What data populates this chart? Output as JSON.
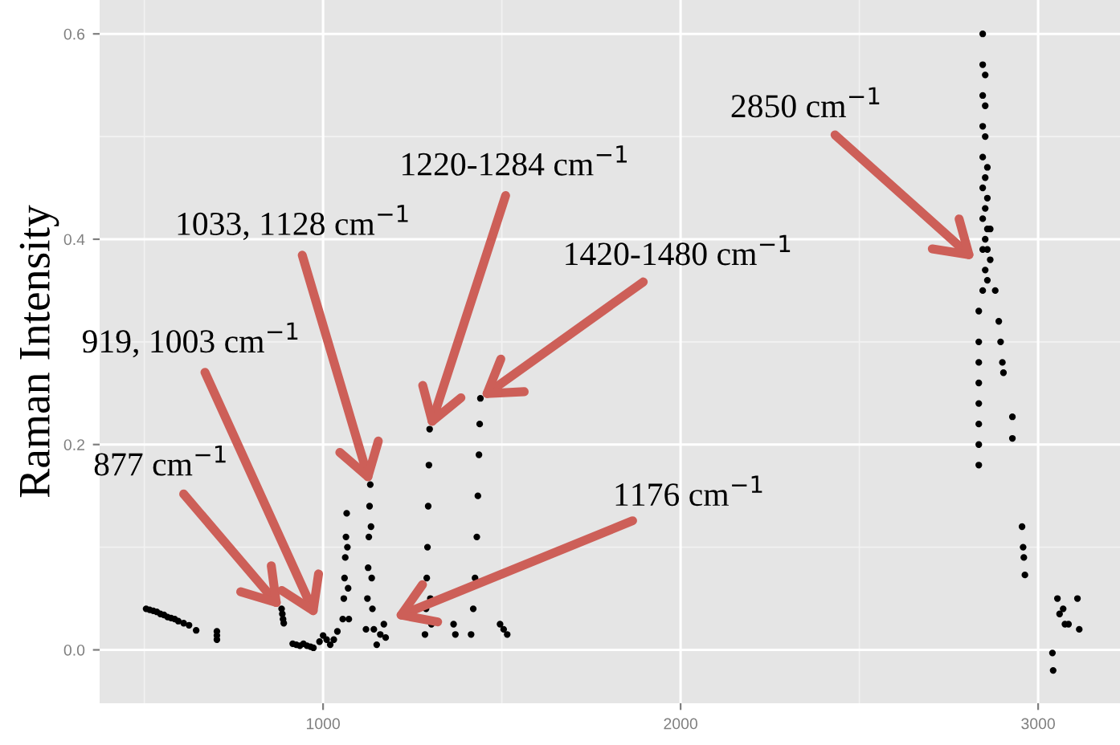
{
  "chart_data": {
    "type": "scatter",
    "ylabel": "Raman Intensity",
    "xlim": [
      375,
      3229
    ],
    "ylim": [
      -0.052,
      0.633
    ],
    "xticks": [
      1000,
      2000,
      3000
    ],
    "yticks": [
      {
        "value": 0,
        "label": "0.0"
      },
      {
        "value": 0.2,
        "label": "0.2"
      },
      {
        "value": 0.4,
        "label": "0.4"
      },
      {
        "value": 0.6,
        "label": "0.6"
      }
    ],
    "grid": true,
    "marker": "circle",
    "series": [
      {
        "color": "#000000",
        "x": [
          505,
          515,
          525,
          535,
          545,
          555,
          565,
          575,
          585,
          595,
          610,
          625,
          645,
          703,
          703,
          703,
          884,
          886,
          888,
          890,
          915,
          925,
          935,
          945,
          955,
          965,
          973,
          990,
          1000,
          1010,
          1020,
          1030,
          1040,
          1055,
          1058,
          1060,
          1062,
          1064,
          1066,
          1068,
          1070,
          1072,
          1120,
          1124,
          1126,
          1128,
          1130,
          1132,
          1134,
          1136,
          1138,
          1142,
          1150,
          1160,
          1170,
          1175,
          1285,
          1288,
          1290,
          1292,
          1294,
          1296,
          1298,
          1300,
          1303,
          1365,
          1370,
          1414,
          1420,
          1425,
          1430,
          1433,
          1436,
          1438,
          1440,
          1495,
          1505,
          1515,
          2834,
          2834,
          2834,
          2834,
          2834,
          2834,
          2834,
          2834,
          2845,
          2845,
          2845,
          2845,
          2845,
          2845,
          2845,
          2845,
          2845,
          2852,
          2852,
          2852,
          2852,
          2852,
          2852,
          2852,
          2858,
          2858,
          2858,
          2858,
          2858,
          2866,
          2866,
          2880,
          2890,
          2895,
          2900,
          2903,
          2928,
          2928,
          2955,
          2958,
          2960,
          2963,
          3040,
          3042,
          3054,
          3060,
          3070,
          3075,
          3085,
          3110,
          3115
        ],
        "values": [
          0.04,
          0.039,
          0.038,
          0.037,
          0.035,
          0.034,
          0.032,
          0.031,
          0.03,
          0.028,
          0.026,
          0.024,
          0.019,
          0.018,
          0.014,
          0.01,
          0.04,
          0.035,
          0.03,
          0.026,
          0.006,
          0.005,
          0.004,
          0.006,
          0.004,
          0.003,
          0.002,
          0.008,
          0.014,
          0.01,
          0.005,
          0.01,
          0.018,
          0.03,
          0.05,
          0.07,
          0.09,
          0.11,
          0.133,
          0.1,
          0.06,
          0.03,
          0.02,
          0.05,
          0.08,
          0.11,
          0.14,
          0.161,
          0.12,
          0.07,
          0.04,
          0.02,
          0.005,
          0.015,
          0.025,
          0.012,
          0.015,
          0.04,
          0.07,
          0.1,
          0.14,
          0.18,
          0.215,
          0.05,
          0.025,
          0.025,
          0.015,
          0.015,
          0.04,
          0.07,
          0.11,
          0.15,
          0.19,
          0.22,
          0.245,
          0.025,
          0.02,
          0.015,
          0.18,
          0.2,
          0.22,
          0.24,
          0.26,
          0.28,
          0.3,
          0.33,
          0.35,
          0.39,
          0.42,
          0.45,
          0.48,
          0.51,
          0.54,
          0.57,
          0.6,
          0.37,
          0.4,
          0.43,
          0.46,
          0.5,
          0.53,
          0.56,
          0.36,
          0.39,
          0.41,
          0.44,
          0.47,
          0.38,
          0.41,
          0.35,
          0.32,
          0.3,
          0.28,
          0.27,
          0.227,
          0.206,
          0.12,
          0.1,
          0.09,
          0.073,
          -0.003,
          -0.02,
          0.05,
          0.035,
          0.04,
          0.025,
          0.025,
          0.05,
          0.02
        ]
      }
    ],
    "annotations": [
      {
        "text": "877 cm$^{−1}$",
        "x": 884,
        "y": 0.04
      },
      "919, 1003 cm$^{−1}$",
      {
        "text": "1033, 1128 cm$^{−1}$",
        "x": 1132,
        "y": 0.161
      },
      {
        "text": "1220-1284 cm$^{−1}$",
        "x": 1298,
        "y": 0.215
      },
      {
        "text": "1420-1480 cm$^{−1}$",
        "x": 1440,
        "y": 0.245
      },
      "1176 cm$^{−1}$",
      "2850 cm$^{−1}$"
    ]
  }
}
